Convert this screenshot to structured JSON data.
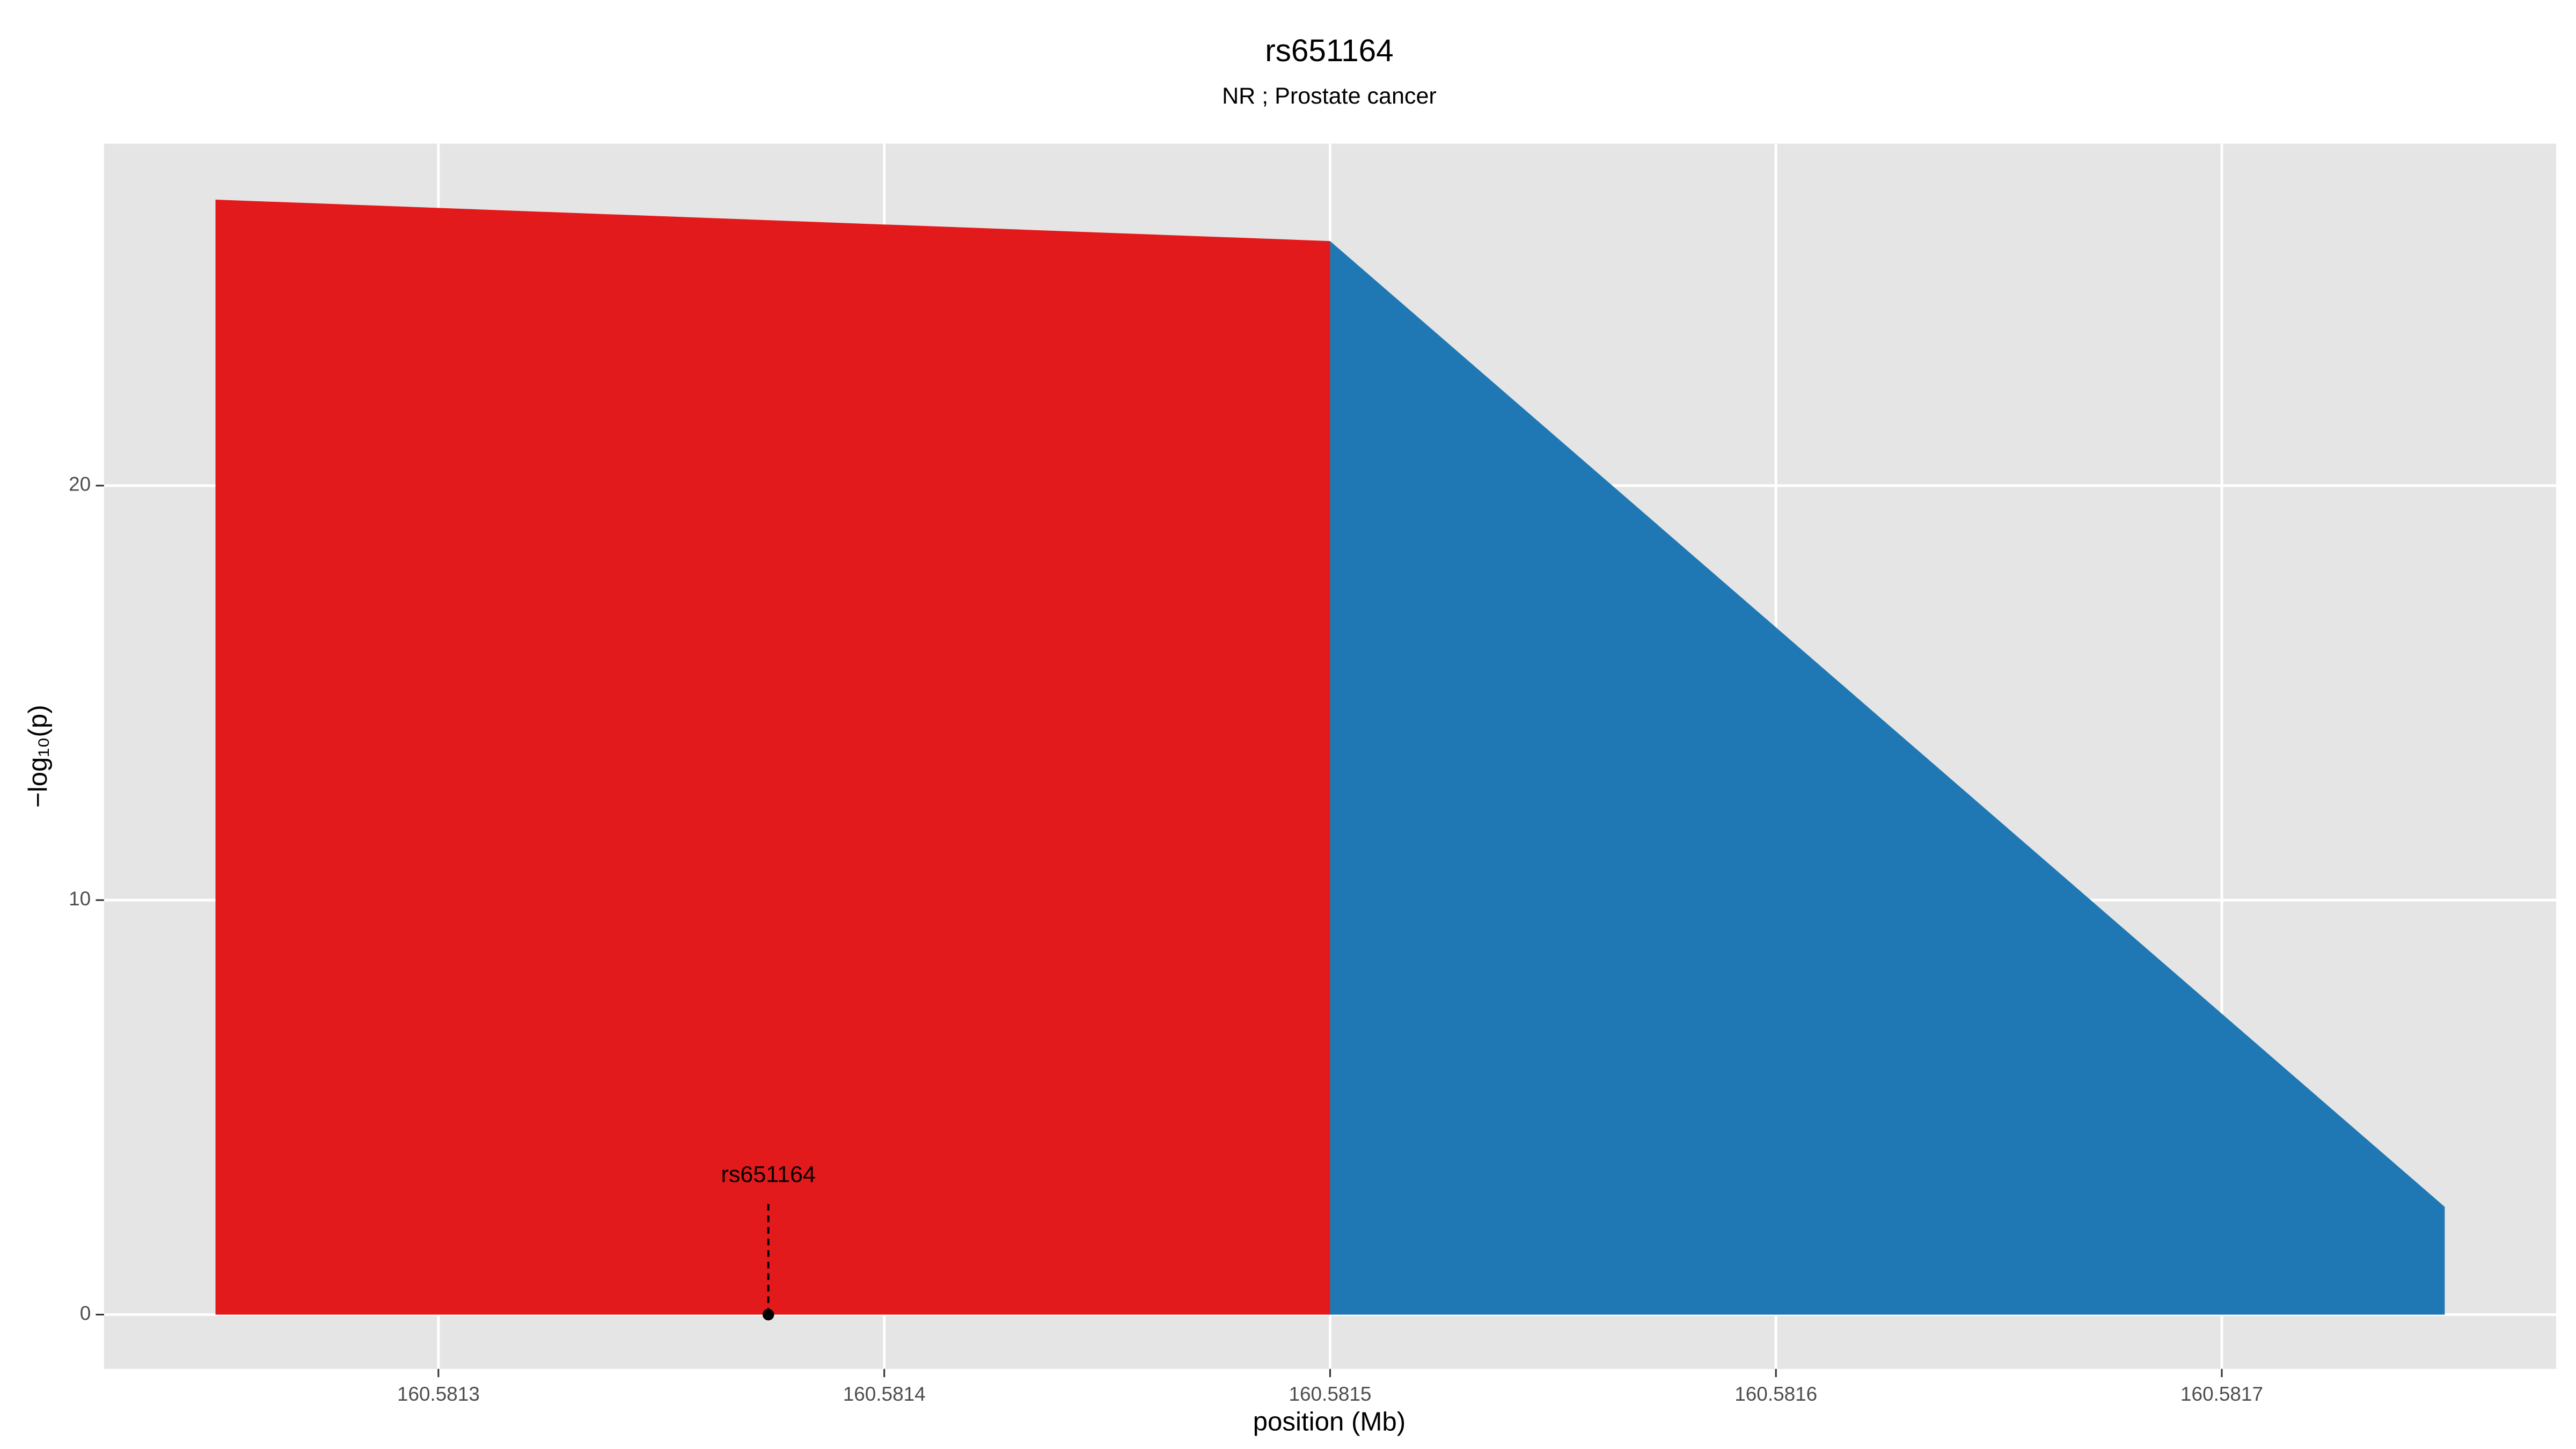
{
  "chart_data": {
    "type": "area",
    "title": "rs651164",
    "subtitle": "NR ; Prostate cancer",
    "xlabel": "position (Mb)",
    "ylabel": "−log₁₀(p)",
    "series": [
      {
        "color": "#e31a1c",
        "x": [
          160.58125,
          160.5815
        ],
        "values": [
          26.9,
          25.9
        ]
      },
      {
        "color": "#1f78b4",
        "x": [
          160.5815,
          160.58175
        ],
        "values": [
          25.9,
          2.6
        ]
      }
    ],
    "xlim": [
      160.581225,
      160.581775
    ],
    "xticks": [
      160.5813,
      160.5814,
      160.5815,
      160.5816,
      160.5817
    ],
    "ylim": [
      -1.31,
      28.25
    ],
    "yticks": [
      0,
      10,
      20
    ],
    "grid": true,
    "annotation": {
      "label": "rs651164",
      "x": 160.581374,
      "y": 0
    }
  }
}
